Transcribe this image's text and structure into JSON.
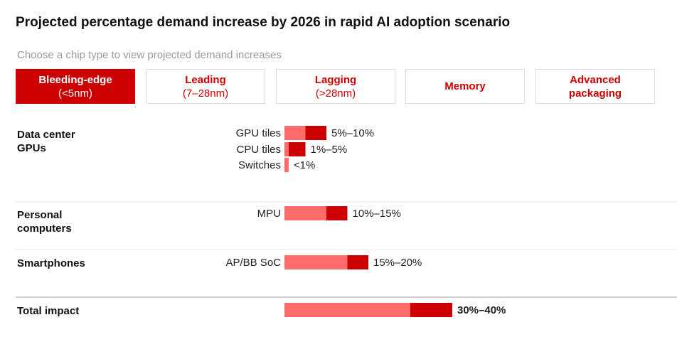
{
  "chart_data": {
    "type": "range_bar",
    "title": "Projected percentage demand increase by 2026 in rapid AI adoption scenario",
    "prompt": "Choose a chip type to view projected demand increases",
    "tabs": [
      {
        "label": "Bleeding-edge",
        "sub": "(<5nm)"
      },
      {
        "label": "Leading",
        "sub": "(7–28nm)"
      },
      {
        "label": "Lagging",
        "sub": "(>28nm)"
      },
      {
        "label": "Memory"
      },
      {
        "label": "Advanced packaging"
      }
    ],
    "selected_tab": 0,
    "colors": {
      "low": "#ff6b6b",
      "high": "#cc0000"
    },
    "groups": [
      {
        "name": "Data center GPUs",
        "rows": [
          {
            "label": "GPU tiles",
            "low": 5,
            "high": 10,
            "value_label": "5%–10%"
          },
          {
            "label": "CPU tiles",
            "low": 1,
            "high": 5,
            "value_label": "1%–5%"
          },
          {
            "label": "Switches",
            "low": 1,
            "high": 1,
            "value_label": "<1%"
          }
        ]
      },
      {
        "name": "Personal computers",
        "rows": [
          {
            "label": "MPU",
            "low": 10,
            "high": 15,
            "value_label": "10%–15%"
          }
        ]
      },
      {
        "name": "Smartphones",
        "rows": [
          {
            "label": "AP/BB SoC",
            "low": 15,
            "high": 20,
            "value_label": "15%–20%"
          }
        ]
      }
    ],
    "total": {
      "name": "Total impact",
      "low": 30,
      "high": 40,
      "value_label": "30%–40%"
    }
  }
}
